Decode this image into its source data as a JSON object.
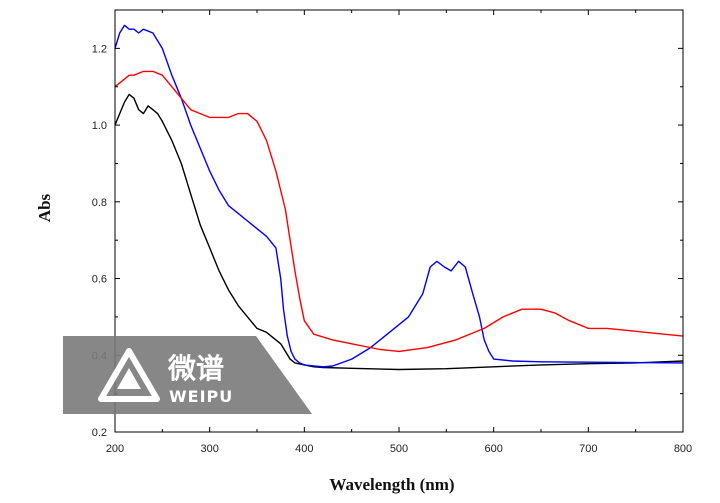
{
  "chart_data": {
    "type": "line",
    "title": "",
    "xlabel": "Wavelength (nm)",
    "ylabel": "Abs",
    "xlim": [
      200,
      800
    ],
    "ylim": [
      0.2,
      1.3
    ],
    "xticks": [
      200,
      300,
      400,
      500,
      600,
      700,
      800
    ],
    "yticks": [
      0.2,
      0.4,
      0.6,
      0.8,
      1.0,
      1.2
    ],
    "ytick_labels": [
      "0.2",
      "0.4",
      "0.6",
      "0.8",
      "1.0",
      "1.2"
    ],
    "grid": false,
    "legend": "none",
    "series": [
      {
        "color": "#000000",
        "x": [
          200,
          205,
          210,
          215,
          220,
          225,
          230,
          235,
          240,
          245,
          250,
          260,
          270,
          280,
          290,
          300,
          310,
          320,
          330,
          340,
          350,
          360,
          370,
          375,
          380,
          385,
          390,
          400,
          410,
          420,
          450,
          500,
          550,
          600,
          650,
          700,
          750,
          800
        ],
        "y": [
          1.0,
          1.03,
          1.06,
          1.08,
          1.07,
          1.04,
          1.03,
          1.05,
          1.04,
          1.03,
          1.01,
          0.96,
          0.9,
          0.82,
          0.74,
          0.68,
          0.62,
          0.57,
          0.53,
          0.5,
          0.47,
          0.46,
          0.44,
          0.43,
          0.41,
          0.39,
          0.38,
          0.375,
          0.37,
          0.368,
          0.366,
          0.363,
          0.365,
          0.37,
          0.375,
          0.378,
          0.38,
          0.385
        ]
      },
      {
        "color": "#0000ff",
        "x": [
          200,
          205,
          210,
          215,
          220,
          225,
          230,
          240,
          250,
          260,
          270,
          280,
          290,
          300,
          310,
          320,
          330,
          340,
          350,
          360,
          370,
          375,
          378,
          382,
          386,
          390,
          395,
          400,
          410,
          420,
          430,
          450,
          470,
          490,
          510,
          525,
          533,
          540,
          548,
          555,
          563,
          570,
          578,
          585,
          590,
          595,
          600,
          620,
          650,
          700,
          750,
          800
        ],
        "y": [
          1.2,
          1.24,
          1.26,
          1.25,
          1.25,
          1.24,
          1.25,
          1.24,
          1.2,
          1.13,
          1.07,
          1.0,
          0.94,
          0.88,
          0.83,
          0.79,
          0.77,
          0.75,
          0.73,
          0.71,
          0.68,
          0.6,
          0.52,
          0.45,
          0.41,
          0.39,
          0.38,
          0.375,
          0.372,
          0.37,
          0.372,
          0.39,
          0.42,
          0.46,
          0.5,
          0.56,
          0.63,
          0.645,
          0.63,
          0.62,
          0.645,
          0.63,
          0.56,
          0.5,
          0.44,
          0.41,
          0.39,
          0.385,
          0.383,
          0.382,
          0.381,
          0.38
        ]
      },
      {
        "color": "#ff0000",
        "x": [
          200,
          205,
          210,
          215,
          220,
          230,
          240,
          250,
          260,
          270,
          280,
          290,
          300,
          310,
          320,
          330,
          340,
          350,
          360,
          370,
          380,
          385,
          390,
          395,
          400,
          410,
          430,
          450,
          480,
          500,
          530,
          560,
          590,
          610,
          630,
          650,
          665,
          680,
          700,
          720,
          740,
          760,
          780,
          800
        ],
        "y": [
          1.1,
          1.11,
          1.12,
          1.13,
          1.13,
          1.14,
          1.14,
          1.13,
          1.1,
          1.07,
          1.04,
          1.03,
          1.02,
          1.02,
          1.02,
          1.03,
          1.03,
          1.01,
          0.96,
          0.88,
          0.78,
          0.7,
          0.62,
          0.55,
          0.49,
          0.455,
          0.44,
          0.43,
          0.415,
          0.41,
          0.42,
          0.44,
          0.47,
          0.5,
          0.52,
          0.52,
          0.51,
          0.49,
          0.47,
          0.47,
          0.465,
          0.46,
          0.455,
          0.45
        ]
      }
    ]
  },
  "watermark": {
    "text_cn": "微谱",
    "text_en": "WEIPU",
    "color": "#7a7a7a"
  }
}
